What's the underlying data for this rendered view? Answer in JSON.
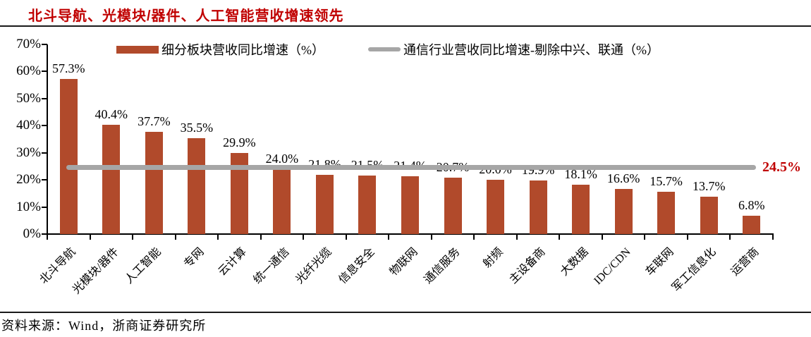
{
  "colors": {
    "title_red": "#C00000",
    "bar_brick": "#B14A2B",
    "line_gray": "#A6A6A6",
    "axis_black": "#000000",
    "rule_black": "#1a1a1a"
  },
  "legend": [
    {
      "label": "细分板块营收同比增速（%）",
      "marker": "bar",
      "color": "#B14A2B"
    },
    {
      "label": "通信行业营收同比增速-剔除中兴、联通（%）",
      "marker": "line",
      "color": "#A6A6A6"
    }
  ],
  "chart_data": {
    "type": "bar",
    "title": "北斗导航、光模块/器件、人工智能营收增速领先",
    "categories": [
      "北斗导航",
      "光模块/器件",
      "人工智能",
      "专网",
      "云计算",
      "统一通信",
      "光纤光缆",
      "信息安全",
      "物联网",
      "通信服务",
      "射频",
      "主设备商",
      "大数据",
      "IDC/CDN",
      "车联网",
      "军工信息化",
      "运营商"
    ],
    "values": [
      57.3,
      40.4,
      37.7,
      35.5,
      29.9,
      24.0,
      21.8,
      21.5,
      21.4,
      20.7,
      20.0,
      19.9,
      18.1,
      16.6,
      15.7,
      13.7,
      6.8
    ],
    "series_name": "细分板块营收同比增速（%）",
    "reference_line": {
      "name": "通信行业营收同比增速-剔除中兴、联通（%）",
      "value": 24.5,
      "label": "24.5%"
    },
    "xlabel": "",
    "ylabel": "",
    "ylim": [
      0,
      70
    ],
    "y_tick_step": 10,
    "y_tick_labels": [
      "0%",
      "10%",
      "20%",
      "30%",
      "40%",
      "50%",
      "60%",
      "70%"
    ],
    "grid": "off",
    "legend_position": "top",
    "bar_color": "#B14A2B",
    "line_color": "#A6A6A6",
    "ref_label_color": "#C00000"
  },
  "source": "资料来源：Wind，浙商证券研究所"
}
